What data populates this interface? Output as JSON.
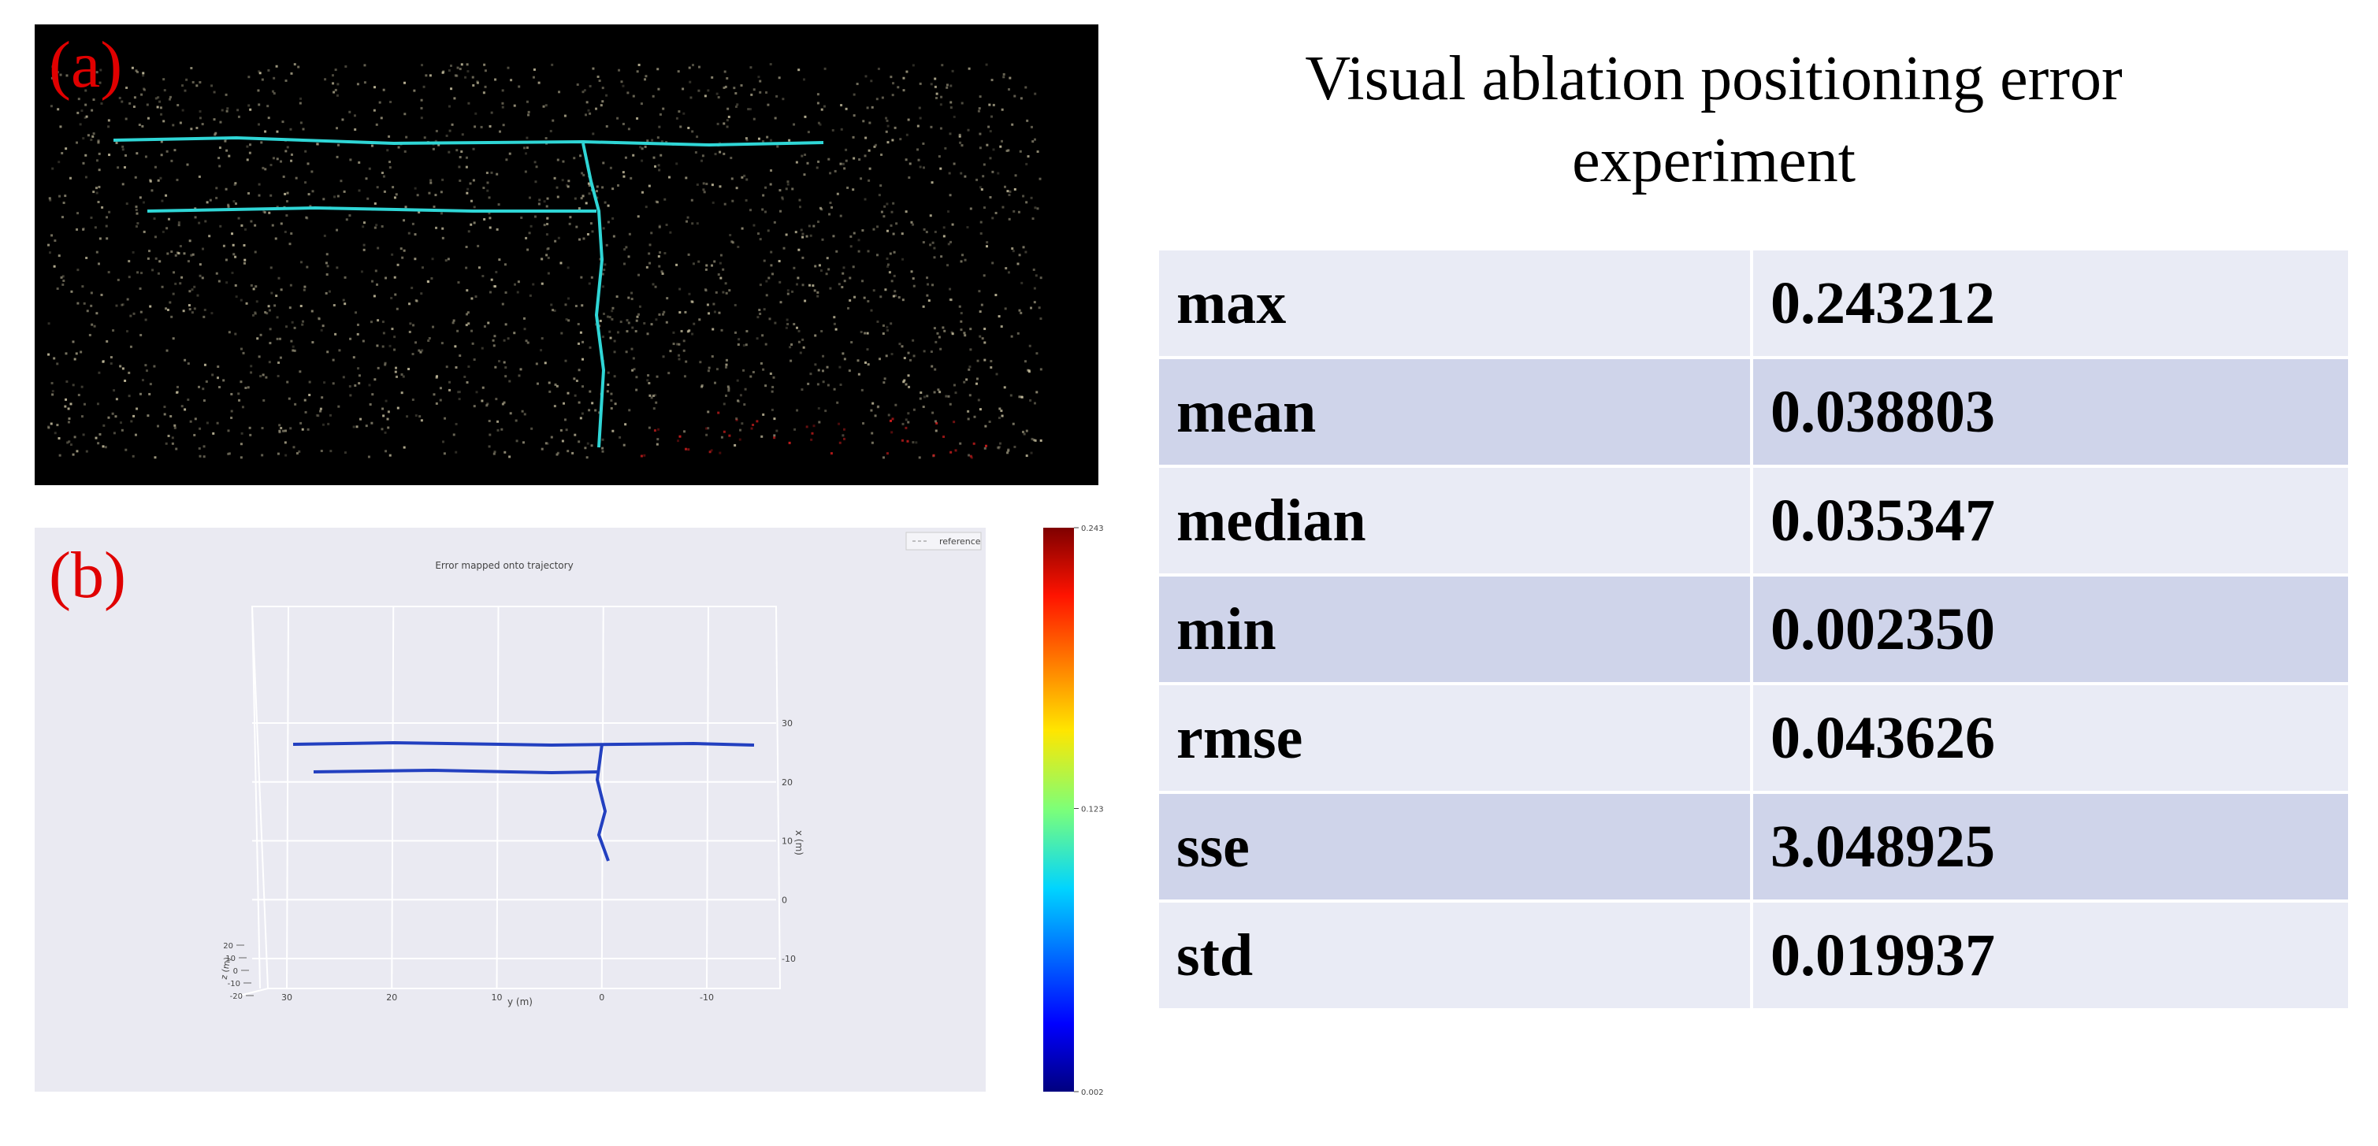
{
  "panel_a": {
    "label": "(a)"
  },
  "panel_b": {
    "label": "(b)",
    "title": "Error mapped onto trajectory",
    "legend": "reference",
    "y_axis": {
      "label": "y (m)",
      "ticks": [
        30,
        20,
        10,
        0,
        -10
      ]
    },
    "x_axis": {
      "label": "x (m)",
      "ticks": [
        30,
        20,
        10,
        0,
        -10
      ]
    },
    "z_axis": {
      "label": "z (m)",
      "ticks": [
        20,
        10,
        0,
        -10,
        -20
      ]
    },
    "colorbar": {
      "ticks": [
        0.243,
        0.123,
        0.002
      ]
    }
  },
  "table": {
    "title": "Visual ablation positioning error experiment",
    "rows": [
      [
        "max",
        "0.243212"
      ],
      [
        "mean",
        "0.038803"
      ],
      [
        "median",
        "0.035347"
      ],
      [
        "min",
        "0.002350"
      ],
      [
        "rmse",
        "0.043626"
      ],
      [
        "sse",
        "3.048925"
      ],
      [
        "std",
        "0.019937"
      ]
    ]
  }
}
